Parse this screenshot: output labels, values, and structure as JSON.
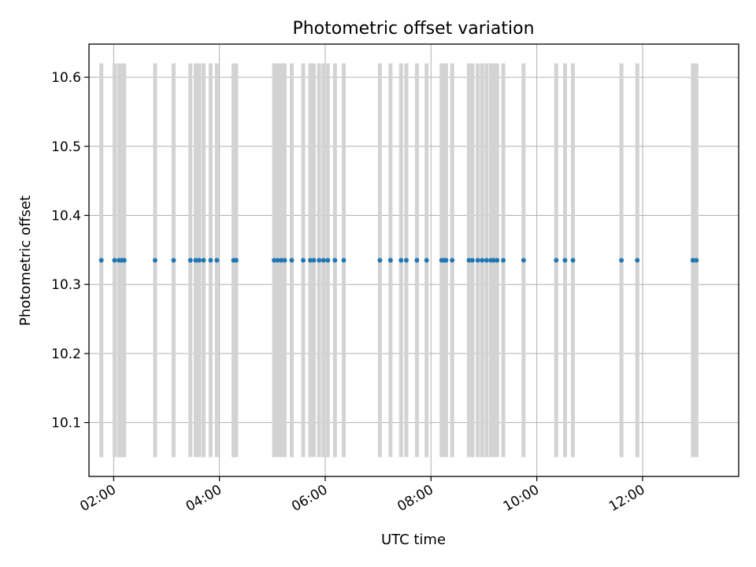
{
  "chart_data": {
    "type": "scatter",
    "title": "Photometric offset variation",
    "xlabel": "UTC time",
    "ylabel": "Photometric offset",
    "x_range": [
      "01:32",
      "13:49"
    ],
    "ylim": [
      10.022,
      10.648
    ],
    "grid": true,
    "x_ticks": [
      "02:00",
      "04:00",
      "06:00",
      "08:00",
      "10:00",
      "12:00"
    ],
    "y_ticks": [
      10.1,
      10.2,
      10.3,
      10.4,
      10.5,
      10.6
    ],
    "y_tick_labels": [
      "10.1",
      "10.2",
      "10.3",
      "10.4",
      "10.5",
      "10.6"
    ],
    "series": [
      {
        "kind": "points",
        "color": "#1f77b4",
        "y_value": 10.335,
        "x": [
          "01:46",
          "02:01",
          "02:06",
          "02:09",
          "02:12",
          "02:47",
          "03:08",
          "03:27",
          "03:33",
          "03:37",
          "03:42",
          "03:50",
          "03:57",
          "04:16",
          "04:19",
          "05:02",
          "05:06",
          "05:10",
          "05:14",
          "05:22",
          "05:35",
          "05:43",
          "05:47",
          "05:53",
          "05:58",
          "06:03",
          "06:11",
          "06:21",
          "07:02",
          "07:14",
          "07:26",
          "07:32",
          "07:44",
          "07:55",
          "08:12",
          "08:15",
          "08:17",
          "08:24",
          "08:43",
          "08:47",
          "08:53",
          "08:58",
          "09:03",
          "09:08",
          "09:11",
          "09:15",
          "09:22",
          "09:45",
          "10:22",
          "10:32",
          "10:41",
          "11:36",
          "11:54",
          "12:57",
          "13:01"
        ]
      },
      {
        "kind": "vertical-bands",
        "color": "#d3d3d3",
        "y_range": [
          10.05,
          10.62
        ],
        "x": [
          "01:46",
          "02:01",
          "02:06",
          "02:09",
          "02:12",
          "02:47",
          "03:08",
          "03:27",
          "03:33",
          "03:37",
          "03:42",
          "03:50",
          "03:57",
          "04:16",
          "04:19",
          "05:02",
          "05:06",
          "05:10",
          "05:14",
          "05:22",
          "05:35",
          "05:43",
          "05:47",
          "05:53",
          "05:58",
          "06:03",
          "06:11",
          "06:21",
          "07:02",
          "07:14",
          "07:26",
          "07:32",
          "07:44",
          "07:55",
          "08:12",
          "08:15",
          "08:17",
          "08:24",
          "08:43",
          "08:47",
          "08:53",
          "08:58",
          "09:03",
          "09:08",
          "09:11",
          "09:15",
          "09:22",
          "09:45",
          "10:22",
          "10:32",
          "10:41",
          "11:36",
          "11:54",
          "12:57",
          "13:01"
        ]
      }
    ]
  }
}
